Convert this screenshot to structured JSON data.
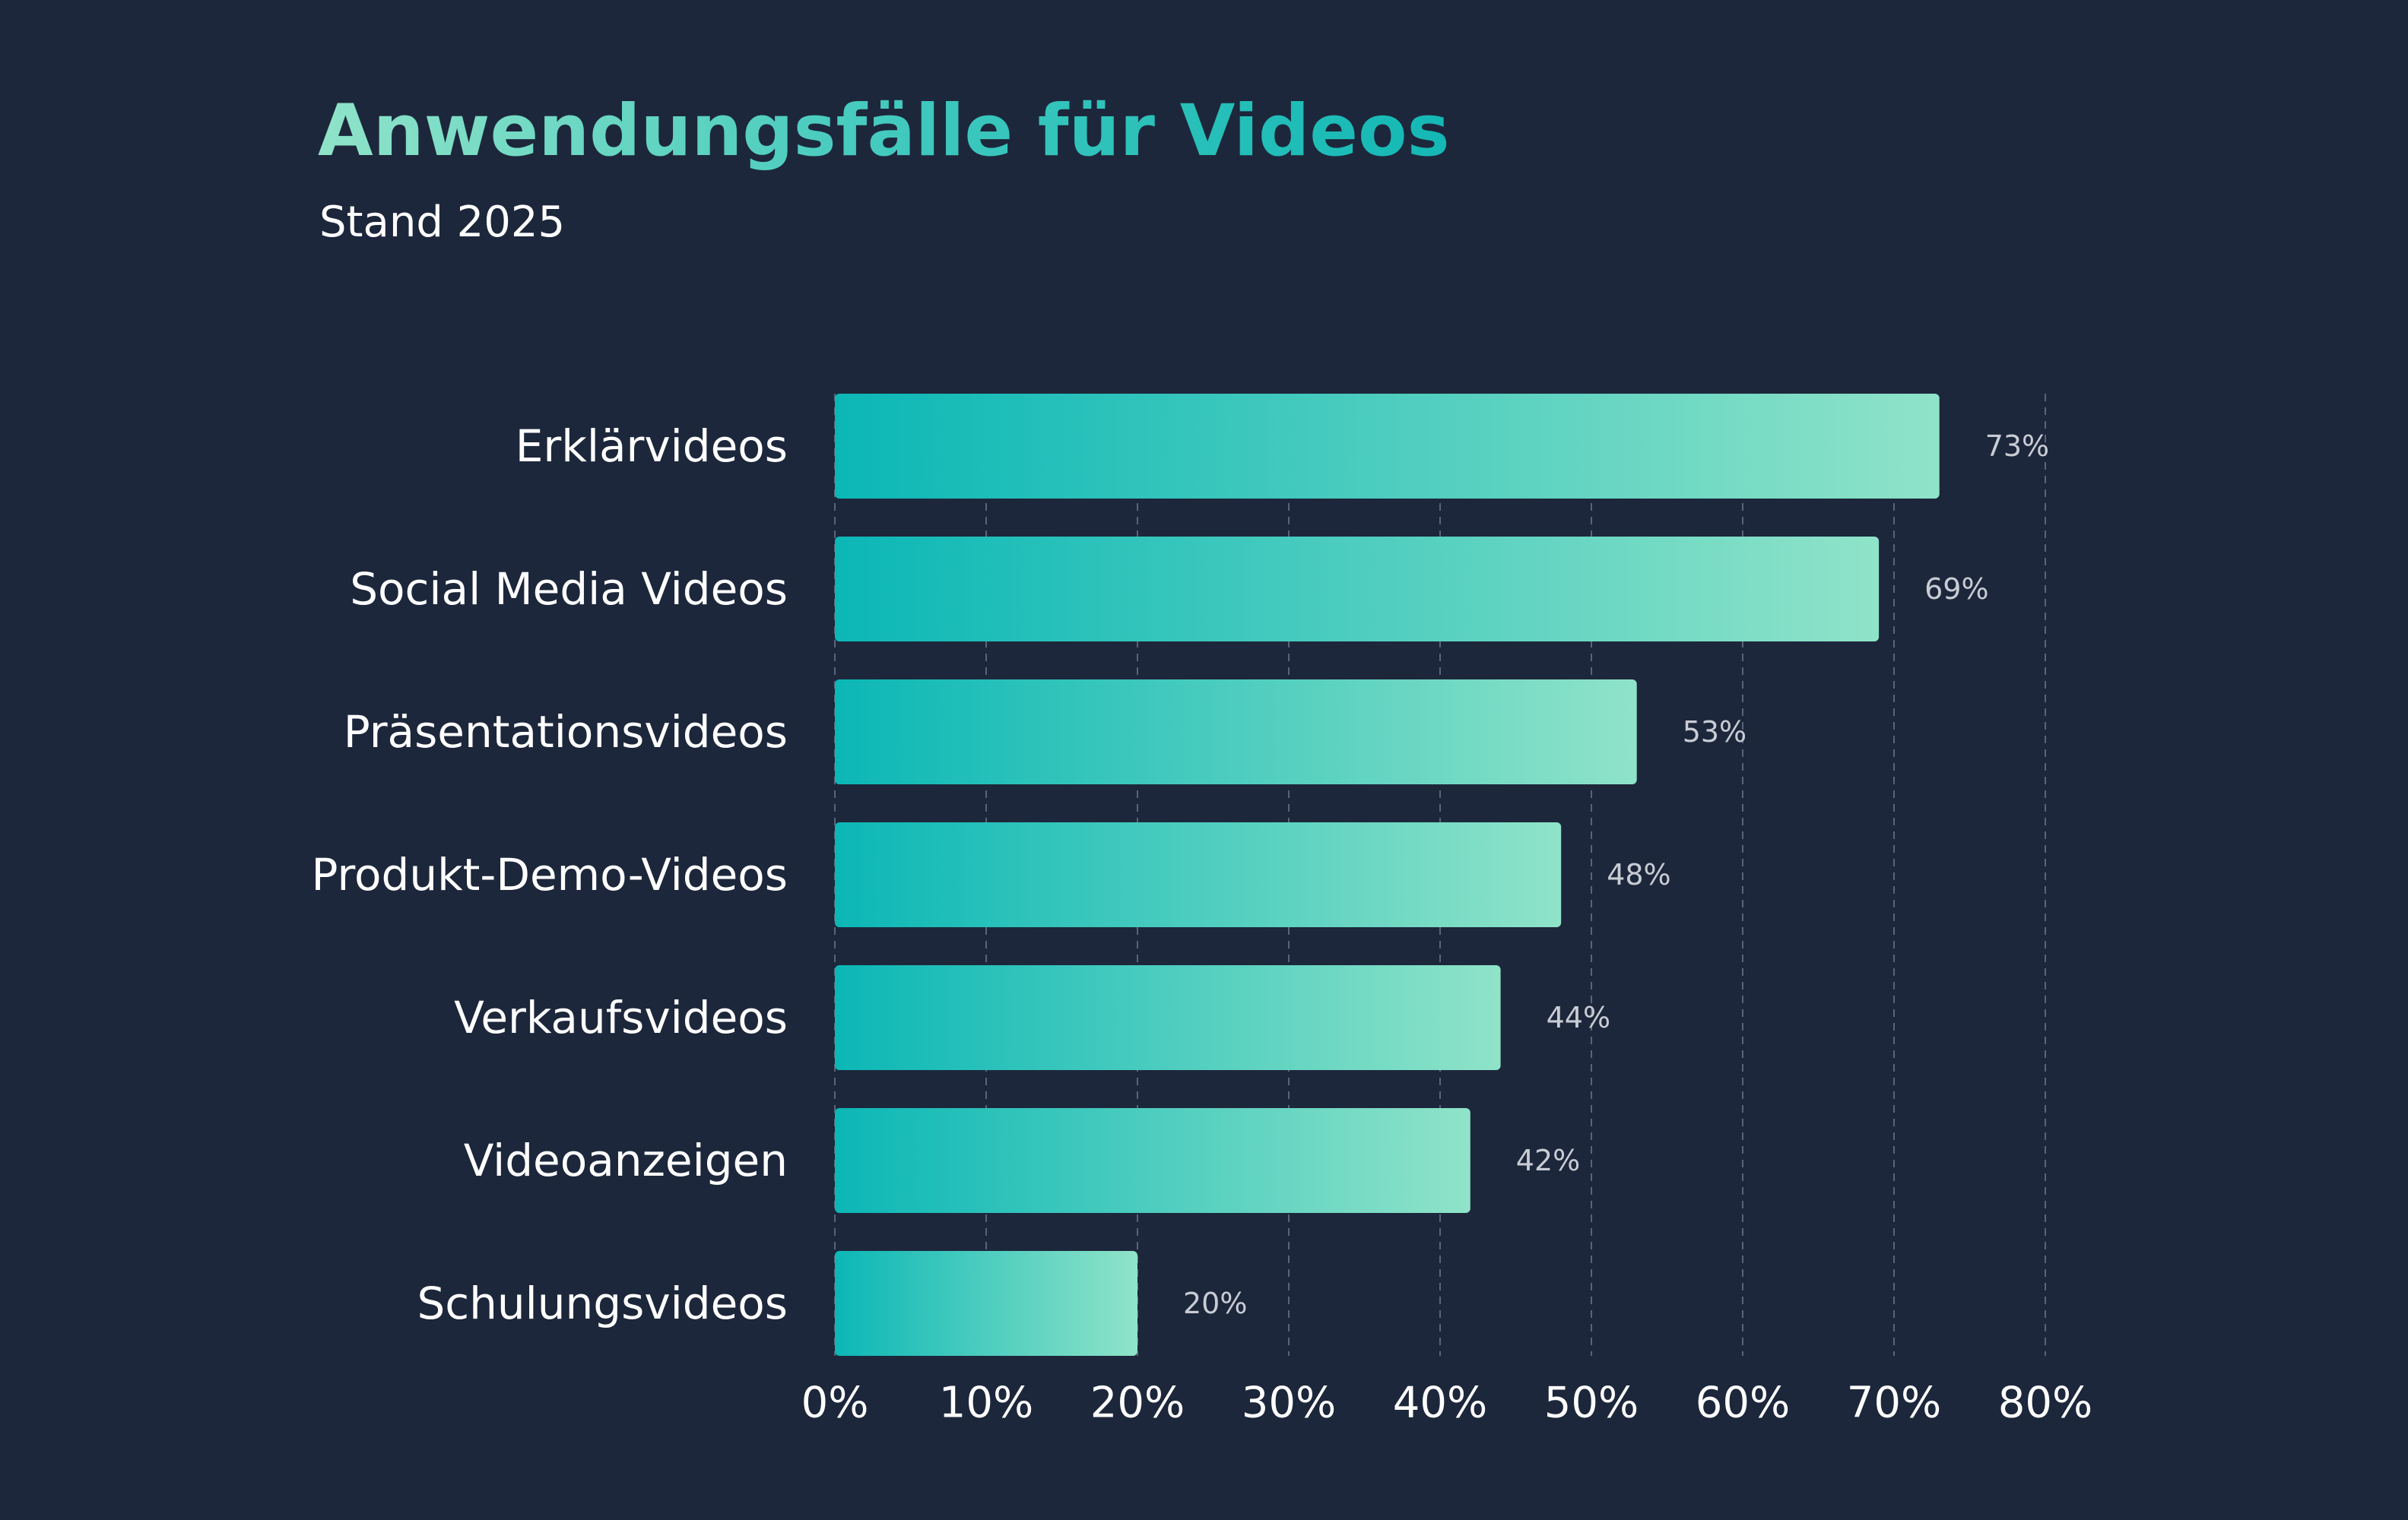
{
  "title": "Anwendungsfälle für Videos",
  "subtitle": "Stand 2025",
  "colors": {
    "background": "#1d273b",
    "bar_start": "#0bb7b6",
    "bar_end": "#8fe3c8",
    "grid": "#5a6478",
    "text": "#ffffff",
    "value_label": "#c8ccd4"
  },
  "chart_data": {
    "type": "bar",
    "orientation": "horizontal",
    "title": "Anwendungsfälle für Videos",
    "subtitle": "Stand 2025",
    "categories": [
      "Erklärvideos",
      "Social Media Videos",
      "Präsentationsvideos",
      "Produkt-Demo-Videos",
      "Verkaufsvideos",
      "Videoanzeigen",
      "Schulungsvideos"
    ],
    "values": [
      73,
      69,
      53,
      48,
      44,
      42,
      20
    ],
    "value_labels": [
      "73%",
      "69%",
      "53%",
      "48%",
      "44%",
      "42%",
      "20%"
    ],
    "x_ticks": [
      0,
      10,
      20,
      30,
      40,
      50,
      60,
      70,
      80
    ],
    "x_tick_labels": [
      "0%",
      "10%",
      "20%",
      "30%",
      "40%",
      "50%",
      "60%",
      "70%",
      "80%"
    ],
    "xlim": [
      0,
      80
    ],
    "xlabel": "",
    "ylabel": "",
    "grid": "vertical dashed",
    "legend": "none"
  }
}
